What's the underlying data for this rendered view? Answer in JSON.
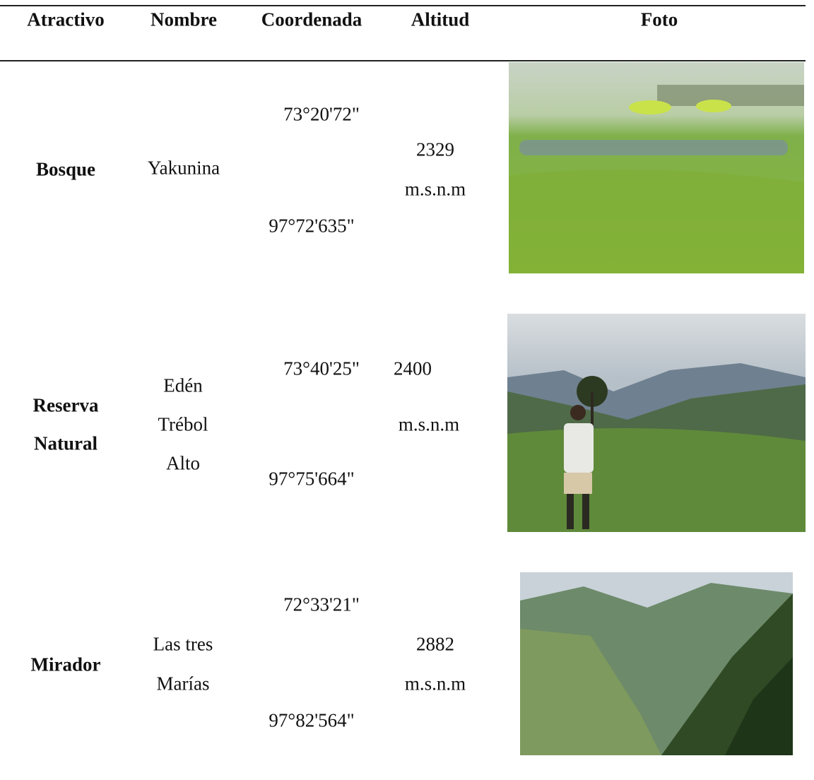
{
  "table": {
    "header": [
      "Atractivo",
      "Nombre",
      "Coordenada",
      "Altitud",
      "Foto"
    ],
    "rows": [
      {
        "atractivo": [
          "Bosque"
        ],
        "nombre": [
          "Yakunina"
        ],
        "coordenada": [
          "73°20'72\"",
          "97°72'635\""
        ],
        "altitud": [
          "2329",
          "m.s.n.m"
        ]
      },
      {
        "atractivo": [
          "Reserva",
          "Natural"
        ],
        "nombre": [
          "Edén",
          "Trébol",
          "Alto"
        ],
        "coordenada": [
          "73°40'25\"",
          "97°75'664\""
        ],
        "altitud": [
          "2400",
          "m.s.n.m"
        ]
      },
      {
        "atractivo": [
          "Mirador"
        ],
        "nombre": [
          "Las tres",
          "Marías"
        ],
        "coordenada": [
          "72°33'21\"",
          "97°82'564\""
        ],
        "altitud": [
          "2882",
          "m.s.n.m"
        ]
      }
    ]
  }
}
